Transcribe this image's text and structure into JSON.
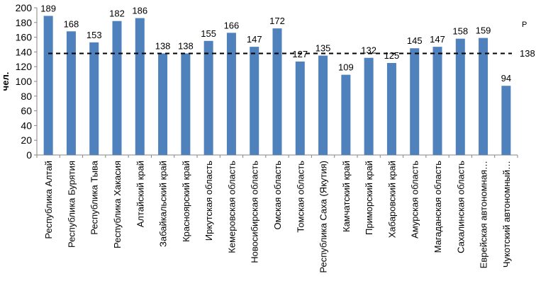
{
  "chart_data": {
    "type": "bar",
    "title": "",
    "xlabel": "",
    "ylabel": "чел.",
    "ylim": [
      0,
      200
    ],
    "yticks": [
      0,
      20,
      40,
      60,
      80,
      100,
      120,
      140,
      160,
      180,
      200
    ],
    "grid": false,
    "bar_color": "#4f81bd",
    "categories": [
      "Республика Алтай",
      "Республика Бурятия",
      "Республика Тыва",
      "Республика Хакасия",
      "Алтайский край",
      "Забайкальский край",
      "Красноярский край",
      "Иркутская область",
      "Кемеровская область",
      "Новосибирская область",
      "Омская область",
      "Томская область",
      "Республика Саха (Якутия)",
      "Камчатский край",
      "Приморский край",
      "Хабаровский край",
      "Амурская область",
      "Магаданская область",
      "Сахалинская область",
      "Еврейская автономная…",
      "Чукотский автономный…"
    ],
    "values": [
      189,
      168,
      153,
      182,
      186,
      138,
      138,
      155,
      166,
      147,
      172,
      127,
      135,
      109,
      132,
      125,
      145,
      147,
      158,
      159,
      94
    ],
    "reference_line": {
      "value": 138,
      "label": "138",
      "style": "dashed",
      "color": "#000000"
    },
    "legend_fragment": "Р"
  }
}
